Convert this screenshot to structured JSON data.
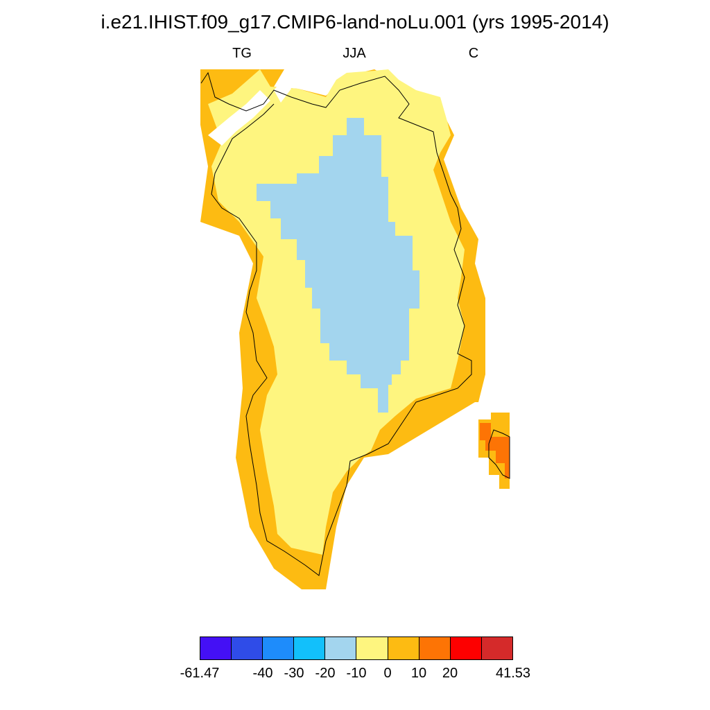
{
  "title": "i.e21.IHIST.f09_g17.CMIP6-land-noLu.001 (yrs 1995-2014)",
  "left_label": "TG",
  "center_label": "JJA",
  "right_label": "C",
  "colorbar": {
    "colors": [
      "#4410f5",
      "#2f4ce8",
      "#1e8cfb",
      "#12c0fb",
      "#a3d5ee",
      "#fef57f",
      "#fdbb12",
      "#fd7405",
      "#fd0000",
      "#d52a2a"
    ],
    "tick_labels": [
      "-61.47",
      "-40",
      "-30",
      "-20",
      "-10",
      "0",
      "10",
      "20",
      "41.53"
    ]
  },
  "map": {
    "region": "Greenland",
    "fill_colors": {
      "minus10_0": "#a3d5ee",
      "0_10": "#fef57f",
      "10_20": "#fdbb12",
      "20_30": "#fd7405"
    }
  }
}
